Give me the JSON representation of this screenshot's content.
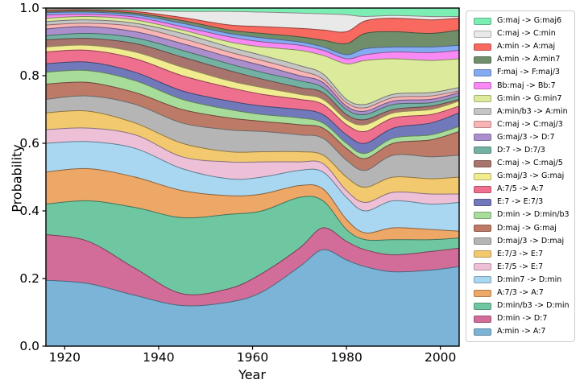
{
  "figure": {
    "xlabel": "Year",
    "ylabel": "Probability",
    "background": "#ffffff",
    "frame_color": "#000000"
  },
  "chart_data": {
    "type": "area",
    "stacked": true,
    "title": "",
    "xlabel": "Year",
    "ylabel": "Probability",
    "xlim": [
      1916,
      2004
    ],
    "ylim": [
      0.0,
      1.0
    ],
    "grid": false,
    "legend_position": "right",
    "legend_order": "reverse-of-stack",
    "x_ticks": [
      1920,
      1940,
      1960,
      1980,
      2000
    ],
    "y_tick_labels": [
      "0.0",
      "0.2",
      "0.4",
      "0.6",
      "0.8",
      "1.0"
    ],
    "y_ticks": [
      0.0,
      0.2,
      0.4,
      0.6,
      0.8,
      1.0
    ],
    "x": [
      1916,
      1925,
      1935,
      1945,
      1955,
      1962,
      1970,
      1975,
      1980,
      1984,
      1990,
      1998,
      2004
    ],
    "series": [
      {
        "name": "A:min -> A:7",
        "color": "#7cb4d8",
        "values": [
          0.195,
          0.185,
          0.15,
          0.12,
          0.13,
          0.16,
          0.235,
          0.285,
          0.255,
          0.235,
          0.22,
          0.225,
          0.235
        ]
      },
      {
        "name": "D:min -> D:7",
        "color": "#d26c99",
        "values": [
          0.135,
          0.125,
          0.08,
          0.035,
          0.04,
          0.055,
          0.055,
          0.065,
          0.055,
          0.05,
          0.05,
          0.055,
          0.055
        ]
      },
      {
        "name": "D:min/b3 -> D:min",
        "color": "#6fc7a1",
        "values": [
          0.09,
          0.12,
          0.18,
          0.225,
          0.22,
          0.185,
          0.15,
          0.08,
          0.035,
          0.03,
          0.045,
          0.035,
          0.03
        ]
      },
      {
        "name": "A:7/3 -> A:7",
        "color": "#eda766",
        "values": [
          0.095,
          0.095,
          0.09,
          0.08,
          0.055,
          0.05,
          0.035,
          0.035,
          0.03,
          0.02,
          0.035,
          0.03,
          0.02
        ]
      },
      {
        "name": "D:min7 -> D:min",
        "color": "#a9d7f2",
        "values": [
          0.085,
          0.08,
          0.085,
          0.065,
          0.05,
          0.05,
          0.045,
          0.05,
          0.065,
          0.065,
          0.08,
          0.075,
          0.085
        ]
      },
      {
        "name": "E:7/5 -> E:7",
        "color": "#edc0d8",
        "values": [
          0.04,
          0.04,
          0.04,
          0.035,
          0.05,
          0.045,
          0.025,
          0.025,
          0.02,
          0.025,
          0.025,
          0.03,
          0.025
        ]
      },
      {
        "name": "E:7/3 -> E:7",
        "color": "#f2c96f",
        "values": [
          0.05,
          0.05,
          0.035,
          0.04,
          0.03,
          0.03,
          0.03,
          0.025,
          0.04,
          0.045,
          0.045,
          0.045,
          0.05
        ]
      },
      {
        "name": "D:maj/3 -> D:maj",
        "color": "#b5b5b5",
        "values": [
          0.04,
          0.045,
          0.055,
          0.06,
          0.065,
          0.06,
          0.05,
          0.05,
          0.05,
          0.05,
          0.065,
          0.065,
          0.065
        ]
      },
      {
        "name": "D:maj -> G:maj",
        "color": "#bd7a67",
        "values": [
          0.045,
          0.04,
          0.035,
          0.04,
          0.035,
          0.03,
          0.03,
          0.03,
          0.035,
          0.035,
          0.035,
          0.05,
          0.07
        ]
      },
      {
        "name": "D:min -> D:min/b3",
        "color": "#a8dc9a",
        "values": [
          0.035,
          0.035,
          0.035,
          0.03,
          0.025,
          0.02,
          0.02,
          0.015,
          0.015,
          0.015,
          0.015,
          0.015,
          0.015
        ]
      },
      {
        "name": "E:7 -> E:7/3",
        "color": "#7179bb",
        "values": [
          0.025,
          0.025,
          0.025,
          0.025,
          0.025,
          0.025,
          0.025,
          0.025,
          0.025,
          0.03,
          0.03,
          0.035,
          0.04
        ]
      },
      {
        "name": "A:7/5 -> A:7",
        "color": "#ef6f8e",
        "values": [
          0.035,
          0.035,
          0.04,
          0.045,
          0.04,
          0.035,
          0.03,
          0.03,
          0.03,
          0.035,
          0.03,
          0.025,
          0.02
        ]
      },
      {
        "name": "G:maj/3 -> G:maj",
        "color": "#f2ec91",
        "values": [
          0.015,
          0.015,
          0.02,
          0.025,
          0.02,
          0.02,
          0.015,
          0.015,
          0.015,
          0.02,
          0.015,
          0.015,
          0.015
        ]
      },
      {
        "name": "C:maj -> C:maj/5",
        "color": "#a8756e",
        "values": [
          0.021,
          0.02,
          0.025,
          0.03,
          0.03,
          0.025,
          0.02,
          0.02,
          0.015,
          0.015,
          0.01,
          0.01,
          0.005
        ]
      },
      {
        "name": "D:7 -> D:7/3",
        "color": "#73b2a2",
        "values": [
          0.012,
          0.015,
          0.017,
          0.02,
          0.02,
          0.02,
          0.02,
          0.015,
          0.015,
          0.015,
          0.015,
          0.01,
          0.01
        ]
      },
      {
        "name": "G:maj/3 -> D:7",
        "color": "#ab8fcc",
        "values": [
          0.02,
          0.02,
          0.018,
          0.02,
          0.02,
          0.02,
          0.015,
          0.015,
          0.01,
          0.01,
          0.01,
          0.01,
          0.01
        ]
      },
      {
        "name": "C:maj -> C:maj/3",
        "color": "#f9b5b5",
        "values": [
          0.012,
          0.01,
          0.015,
          0.015,
          0.015,
          0.015,
          0.015,
          0.01,
          0.01,
          0.01,
          0.01,
          0.01,
          0.005
        ]
      },
      {
        "name": "A:min/b3 -> A:min",
        "color": "#c5c5c5",
        "values": [
          0.01,
          0.01,
          0.01,
          0.015,
          0.015,
          0.015,
          0.015,
          0.015,
          0.01,
          0.01,
          0.01,
          0.01,
          0.01
        ]
      },
      {
        "name": "G:min -> G:min7",
        "color": "#dcea9c",
        "values": [
          0.01,
          0.01,
          0.01,
          0.01,
          0.015,
          0.025,
          0.045,
          0.055,
          0.105,
          0.13,
          0.105,
          0.095,
          0.085
        ]
      },
      {
        "name": "Bb:maj -> Bb:7",
        "color": "#f98af5",
        "values": [
          0.009,
          0.007,
          0.008,
          0.01,
          0.015,
          0.015,
          0.015,
          0.015,
          0.015,
          0.017,
          0.02,
          0.023,
          0.025
        ]
      },
      {
        "name": "F:maj -> F:maj/3",
        "color": "#84abf2",
        "values": [
          0.007,
          0.006,
          0.007,
          0.01,
          0.01,
          0.012,
          0.01,
          0.01,
          0.012,
          0.018,
          0.015,
          0.017,
          0.015
        ]
      },
      {
        "name": "A:min -> A:min7",
        "color": "#718e6a",
        "values": [
          0.004,
          0.004,
          0.005,
          0.008,
          0.01,
          0.013,
          0.015,
          0.02,
          0.033,
          0.045,
          0.045,
          0.04,
          0.045
        ]
      },
      {
        "name": "A:min -> A:maj",
        "color": "#f86a60",
        "values": [
          0.004,
          0.003,
          0.005,
          0.009,
          0.015,
          0.02,
          0.025,
          0.03,
          0.035,
          0.037,
          0.04,
          0.04,
          0.035
        ]
      },
      {
        "name": "C:maj -> C:min",
        "color": "#e9e9e9",
        "values": [
          0.003,
          0.002,
          0.004,
          0.018,
          0.04,
          0.043,
          0.045,
          0.048,
          0.05,
          0.013,
          0.008,
          0.01,
          0.005
        ]
      },
      {
        "name": "G:maj -> G:maj6",
        "color": "#7deeb3",
        "values": [
          0.003,
          0.003,
          0.006,
          0.01,
          0.01,
          0.012,
          0.015,
          0.017,
          0.02,
          0.025,
          0.022,
          0.025,
          0.025
        ]
      }
    ]
  }
}
